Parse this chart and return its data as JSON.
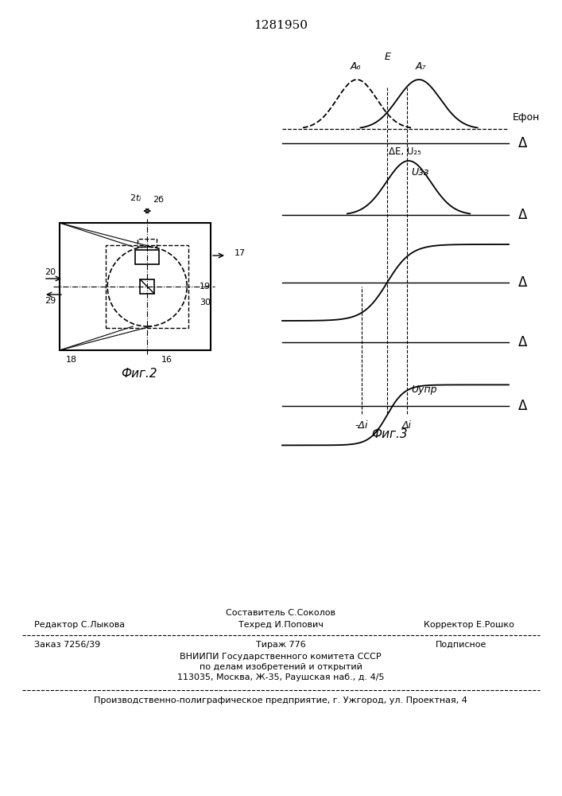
{
  "patent_number": "1281950",
  "bg_color": "#ffffff",
  "fig2_label": "Фиг.2",
  "fig3_label": "Фиг.3",
  "graph_labels": {
    "A6": "A₆",
    "E": "E",
    "A7": "A₇",
    "Efon": "Eфон",
    "deltaE_U25": "ΔE, U₂₅",
    "U33": "Uзз",
    "Uupr": "Uупр",
    "minus_delta_i": "-Δi",
    "delta_i": "Δi"
  },
  "footer_line1_left": "Редактор С.Лыкова",
  "footer_line1_center": "Составитель С.Соколов",
  "footer_line1_right": "Корректор Е.Рошко",
  "footer_techred": "Техред И.Попович",
  "footer_zakaz": "Заказ 7256/39",
  "footer_tirazh": "Тираж 776",
  "footer_podpisnoe": "Подписное",
  "footer_vnipi": "ВНИИПИ Государственного комитета СССР",
  "footer_po_delam": "по делам изобретений и открытий",
  "footer_address": "113035, Москва, Ж-35, Раушская наб., д. 4/5",
  "footer_production": "Производственно-полиграфическое предприятие, г. Ужгород, ул. Проектная, 4"
}
